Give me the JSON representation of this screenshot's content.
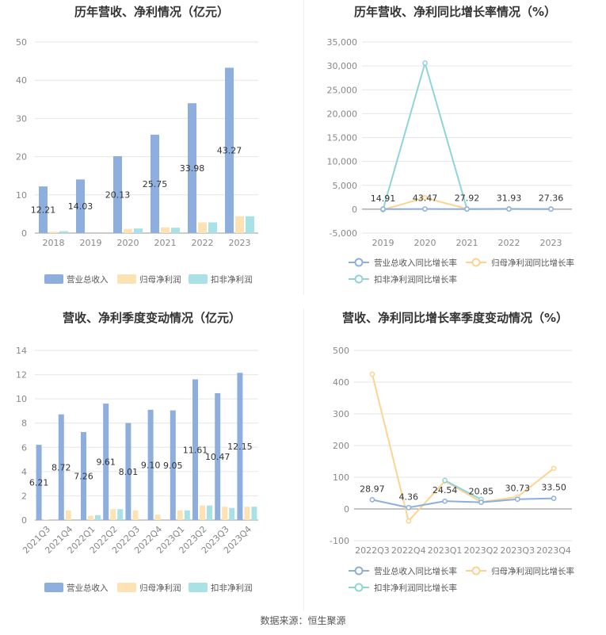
{
  "source": "数据来源：恒生聚源",
  "colors": {
    "revenue": "#8eaedd",
    "parent_profit": "#fde2b4",
    "deducted_profit": "#a9e2e4",
    "revenue_line": "#8eaedd",
    "parent_line": "#fdd48f",
    "deducted_line": "#8fd5d8",
    "grid": "#e6e6e6",
    "axis_text": "#888888",
    "label_text": "#333333"
  },
  "chart_data": [
    {
      "id": "c1",
      "type": "bar",
      "title": "历年营收、净利情况（亿元）",
      "categories": [
        "2018",
        "2019",
        "2020",
        "2021",
        "2022",
        "2023"
      ],
      "ylim": [
        0,
        50
      ],
      "yticks": [
        0,
        10,
        20,
        30,
        40,
        50
      ],
      "series": [
        {
          "name": "营业总收入",
          "color": "#8eaedd",
          "values": [
            12.21,
            14.03,
            20.13,
            25.75,
            33.98,
            43.27
          ],
          "labels": [
            "12.21",
            "14.03",
            "20.13",
            "25.75",
            "33.98",
            "43.27"
          ]
        },
        {
          "name": "归母净利润",
          "color": "#fde2b4",
          "values": [
            0.35,
            0.0,
            1.1,
            1.5,
            2.8,
            4.4
          ]
        },
        {
          "name": "扣非净利润",
          "color": "#a9e2e4",
          "values": [
            0.5,
            0.0,
            1.2,
            1.4,
            2.8,
            4.4
          ]
        }
      ],
      "legend": "bottom"
    },
    {
      "id": "c2",
      "type": "line",
      "title": "历年营收、净利同比增长率情况（%）",
      "categories": [
        "2019",
        "2020",
        "2021",
        "2022",
        "2023"
      ],
      "ylim": [
        -5000,
        35000
      ],
      "yticks": [
        -5000,
        0,
        5000,
        10000,
        15000,
        20000,
        25000,
        30000,
        35000
      ],
      "ytick_labels": [
        "-5,000",
        "0",
        "5,000",
        "10,000",
        "15,000",
        "20,000",
        "25,000",
        "30,000",
        "35,000"
      ],
      "series": [
        {
          "name": "营业总收入同比增长率",
          "color": "#8eaedd",
          "values": [
            14.91,
            43.47,
            27.92,
            31.93,
            27.36
          ],
          "labels": [
            "14.91",
            "43.47",
            "27.92",
            "31.93",
            "27.36"
          ]
        },
        {
          "name": "归母净利润同比增长率",
          "color": "#fdd48f",
          "values": [
            -100,
            2400,
            60,
            80,
            50
          ]
        },
        {
          "name": "扣非净利润同比增长率",
          "color": "#8fd5d8",
          "values": [
            -100,
            30600,
            50,
            60,
            40
          ]
        }
      ],
      "legend": "bottom"
    },
    {
      "id": "c3",
      "type": "bar",
      "title": "营收、净利季度变动情况（亿元）",
      "categories": [
        "2021Q3",
        "2021Q4",
        "2022Q1",
        "2022Q2",
        "2022Q3",
        "2022Q4",
        "2023Q1",
        "2023Q2",
        "2023Q3",
        "2023Q4"
      ],
      "ylim": [
        0,
        14
      ],
      "yticks": [
        0,
        2,
        4,
        6,
        8,
        10,
        12,
        14
      ],
      "series": [
        {
          "name": "营业总收入",
          "color": "#8eaedd",
          "values": [
            6.21,
            8.72,
            7.26,
            9.61,
            8.01,
            9.1,
            9.05,
            11.61,
            10.47,
            12.15
          ],
          "labels": [
            "6.21",
            "8.72",
            "7.26",
            "9.61",
            "8.01",
            "9.10",
            "9.05",
            "11.61",
            "10.47",
            "12.15"
          ]
        },
        {
          "name": "归母净利润",
          "color": "#fde2b4",
          "values": [
            0.05,
            0.8,
            0.35,
            0.9,
            0.8,
            0.45,
            0.8,
            1.2,
            1.1,
            1.1
          ]
        },
        {
          "name": "扣非净利润",
          "color": "#a9e2e4",
          "values": [
            0.0,
            0.0,
            0.4,
            0.9,
            0.0,
            0.0,
            0.8,
            1.2,
            1.0,
            1.1
          ]
        }
      ],
      "legend": "bottom"
    },
    {
      "id": "c4",
      "type": "line",
      "title": "营收、净利同比增长率季度变动情况（%）",
      "categories": [
        "2022Q3",
        "2022Q4",
        "2023Q1",
        "2023Q2",
        "2023Q3",
        "2023Q4"
      ],
      "ylim": [
        -100,
        500
      ],
      "yticks": [
        -100,
        0,
        100,
        200,
        300,
        400,
        500
      ],
      "series": [
        {
          "name": "营业总收入同比增长率",
          "color": "#8eaedd",
          "values": [
            28.97,
            4.36,
            24.54,
            20.85,
            30.73,
            33.5
          ],
          "labels": [
            "28.97",
            "4.36",
            "24.54",
            "20.85",
            "30.73",
            "33.50"
          ]
        },
        {
          "name": "归母净利润同比增长率",
          "color": "#fdd48f",
          "values": [
            425,
            -38,
            88,
            22,
            38,
            128
          ]
        },
        {
          "name": "扣非净利润同比增长率",
          "color": "#8fd5d8",
          "values": [
            null,
            null,
            90,
            30,
            null,
            null
          ]
        }
      ],
      "legend": "bottom"
    }
  ]
}
